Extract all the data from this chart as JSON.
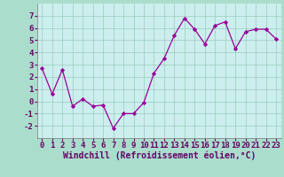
{
  "x": [
    0,
    1,
    2,
    3,
    4,
    5,
    6,
    7,
    8,
    9,
    10,
    11,
    12,
    13,
    14,
    15,
    16,
    17,
    18,
    19,
    20,
    21,
    22,
    23
  ],
  "y": [
    2.7,
    0.6,
    2.6,
    -0.4,
    0.2,
    -0.4,
    -0.3,
    -2.2,
    -1.0,
    -1.0,
    -0.1,
    2.3,
    3.5,
    5.4,
    6.8,
    5.9,
    4.7,
    6.2,
    6.5,
    4.3,
    5.7,
    5.9,
    5.9,
    5.1
  ],
  "line_color": "#990099",
  "marker_color": "#990099",
  "bg_color": "#aaddcc",
  "plot_bg_color": "#cceeee",
  "grid_color": "#99ccbb",
  "xlabel": "Windchill (Refroidissement éolien,°C)",
  "ylim": [
    -3,
    8
  ],
  "xlim": [
    -0.5,
    23.5
  ],
  "yticks": [
    -2,
    -1,
    0,
    1,
    2,
    3,
    4,
    5,
    6,
    7
  ],
  "xticks": [
    0,
    1,
    2,
    3,
    4,
    5,
    6,
    7,
    8,
    9,
    10,
    11,
    12,
    13,
    14,
    15,
    16,
    17,
    18,
    19,
    20,
    21,
    22,
    23
  ],
  "xlabel_fontsize": 7.0,
  "tick_fontsize": 6.5,
  "label_color": "#660066",
  "spine_color": "#888888"
}
